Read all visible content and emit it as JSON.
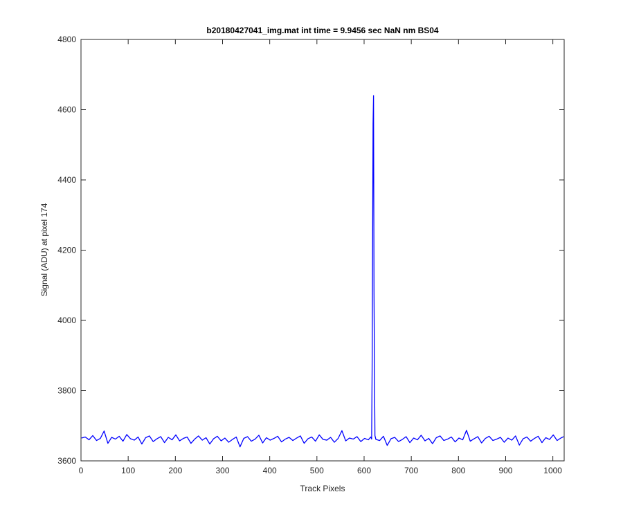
{
  "chart_data": {
    "type": "line",
    "title": "b20180427041_img.mat int time = 9.9456 sec  NaN nm BS04",
    "x_label": "Track Pixels",
    "y_label": "Signal (ADU) at pixel 174",
    "xlim": [
      0,
      1024
    ],
    "ylim": [
      3600,
      4800
    ],
    "xticks": [
      0,
      100,
      200,
      300,
      400,
      500,
      600,
      700,
      800,
      900,
      1000
    ],
    "yticks": [
      3600,
      3800,
      4000,
      4200,
      4400,
      4600,
      4800
    ],
    "grid": false,
    "x": [
      1,
      9,
      17,
      25,
      33,
      41,
      49,
      57,
      65,
      73,
      81,
      89,
      97,
      105,
      113,
      121,
      129,
      137,
      145,
      153,
      161,
      169,
      177,
      185,
      193,
      201,
      209,
      217,
      225,
      233,
      241,
      249,
      257,
      265,
      273,
      281,
      289,
      297,
      305,
      313,
      321,
      329,
      337,
      345,
      353,
      361,
      369,
      377,
      385,
      393,
      401,
      409,
      417,
      425,
      433,
      441,
      449,
      457,
      465,
      473,
      481,
      489,
      497,
      505,
      513,
      521,
      529,
      537,
      545,
      553,
      561,
      569,
      577,
      585,
      593,
      601,
      609,
      614,
      616,
      617,
      619,
      620,
      621,
      622,
      623,
      625,
      633,
      641,
      649,
      657,
      665,
      673,
      681,
      689,
      697,
      705,
      713,
      721,
      729,
      737,
      745,
      753,
      761,
      769,
      777,
      785,
      793,
      801,
      809,
      817,
      825,
      833,
      841,
      849,
      857,
      865,
      873,
      881,
      889,
      897,
      905,
      913,
      921,
      929,
      937,
      945,
      953,
      961,
      969,
      977,
      985,
      993,
      1001,
      1009,
      1017,
      1023
    ],
    "series": [
      {
        "color": "#0000ff",
        "values": [
          3665,
          3668,
          3660,
          3672,
          3658,
          3664,
          3685,
          3650,
          3667,
          3662,
          3670,
          3656,
          3675,
          3663,
          3659,
          3668,
          3648,
          3666,
          3671,
          3655,
          3663,
          3669,
          3652,
          3667,
          3660,
          3674,
          3657,
          3664,
          3668,
          3650,
          3662,
          3671,
          3659,
          3666,
          3648,
          3663,
          3670,
          3657,
          3665,
          3653,
          3661,
          3668,
          3640,
          3664,
          3669,
          3656,
          3662,
          3673,
          3651,
          3666,
          3659,
          3664,
          3670,
          3654,
          3662,
          3667,
          3658,
          3665,
          3671,
          3650,
          3663,
          3668,
          3656,
          3674,
          3661,
          3659,
          3667,
          3653,
          3664,
          3686,
          3657,
          3665,
          3662,
          3669,
          3655,
          3664,
          3660,
          3668,
          3662,
          3860,
          4560,
          4640,
          4080,
          3860,
          3672,
          3661,
          3658,
          3670,
          3644,
          3663,
          3667,
          3655,
          3661,
          3669,
          3652,
          3665,
          3660,
          3673,
          3657,
          3664,
          3649,
          3666,
          3671,
          3658,
          3662,
          3668,
          3654,
          3665,
          3660,
          3687,
          3656,
          3663,
          3669,
          3651,
          3664,
          3670,
          3658,
          3662,
          3667,
          3653,
          3665,
          3659,
          3671,
          3645,
          3663,
          3668,
          3656,
          3664,
          3670,
          3652,
          3666,
          3661,
          3674,
          3658,
          3665,
          3669
        ]
      }
    ]
  }
}
